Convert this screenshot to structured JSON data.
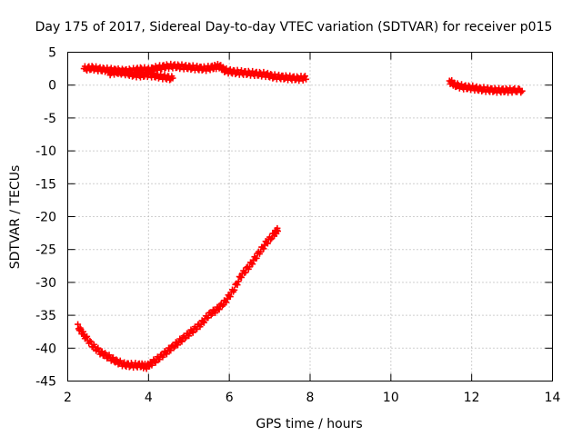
{
  "chart_data": {
    "type": "scatter",
    "title": "Day 175 of 2017, Sidereal Day-to-day VTEC variation (SDTVAR) for receiver p015",
    "xlabel": "GPS time / hours",
    "ylabel": "SDTVAR / TECUs",
    "xlim": [
      2,
      14
    ],
    "ylim": [
      -45,
      5
    ],
    "xticks": [
      2,
      4,
      6,
      8,
      10,
      12,
      14
    ],
    "yticks": [
      5,
      0,
      -5,
      -10,
      -15,
      -20,
      -25,
      -30,
      -35,
      -40,
      -45
    ],
    "grid": true,
    "marker": "plus",
    "color": "#ff0000",
    "series": [
      {
        "values": [
          [
            2.4,
            2.5
          ],
          [
            2.6,
            2.6
          ],
          [
            2.8,
            2.4
          ],
          [
            3.0,
            2.3
          ],
          [
            3.2,
            2.2
          ],
          [
            3.4,
            2.1
          ],
          [
            3.6,
            2.2
          ],
          [
            3.8,
            2.4
          ],
          [
            4.0,
            2.3
          ],
          [
            4.2,
            2.6
          ],
          [
            4.4,
            2.8
          ],
          [
            4.6,
            2.9
          ],
          [
            4.8,
            2.8
          ],
          [
            5.0,
            2.7
          ],
          [
            5.2,
            2.6
          ],
          [
            5.4,
            2.5
          ],
          [
            5.6,
            2.7
          ],
          [
            5.75,
            2.9
          ],
          [
            5.9,
            2.2
          ],
          [
            6.1,
            2.0
          ],
          [
            6.3,
            1.9
          ],
          [
            6.5,
            1.8
          ],
          [
            6.7,
            1.7
          ],
          [
            6.9,
            1.6
          ],
          [
            7.1,
            1.3
          ],
          [
            7.3,
            1.2
          ],
          [
            7.5,
            1.1
          ],
          [
            7.7,
            1.0
          ],
          [
            7.9,
            1.1
          ]
        ]
      },
      {
        "values": [
          [
            3.0,
            1.8
          ],
          [
            3.2,
            2.0
          ],
          [
            3.4,
            1.9
          ],
          [
            3.6,
            1.6
          ],
          [
            3.8,
            1.5
          ],
          [
            4.0,
            1.6
          ],
          [
            4.2,
            1.4
          ],
          [
            4.4,
            1.2
          ],
          [
            4.6,
            1.0
          ]
        ]
      },
      {
        "values": [
          [
            2.25,
            -36.7
          ],
          [
            2.4,
            -38.0
          ],
          [
            2.6,
            -39.5
          ],
          [
            2.8,
            -40.6
          ],
          [
            3.0,
            -41.3
          ],
          [
            3.2,
            -42.0
          ],
          [
            3.4,
            -42.5
          ],
          [
            3.6,
            -42.6
          ],
          [
            3.8,
            -42.6
          ],
          [
            3.95,
            -42.8
          ],
          [
            4.1,
            -42.2
          ],
          [
            4.3,
            -41.3
          ],
          [
            4.5,
            -40.3
          ],
          [
            4.7,
            -39.3
          ],
          [
            4.9,
            -38.3
          ],
          [
            5.1,
            -37.3
          ],
          [
            5.3,
            -36.3
          ],
          [
            5.5,
            -34.9
          ],
          [
            5.7,
            -34.1
          ],
          [
            5.9,
            -32.9
          ],
          [
            6.1,
            -31.2
          ],
          [
            6.3,
            -28.9
          ],
          [
            6.5,
            -27.5
          ],
          [
            6.7,
            -25.8
          ],
          [
            6.9,
            -24.1
          ],
          [
            7.1,
            -22.7
          ],
          [
            7.2,
            -22.0
          ]
        ]
      },
      {
        "values": [
          [
            11.45,
            0.6
          ],
          [
            11.6,
            0.0
          ],
          [
            11.8,
            -0.3
          ],
          [
            12.0,
            -0.4
          ],
          [
            12.2,
            -0.6
          ],
          [
            12.4,
            -0.7
          ],
          [
            12.6,
            -0.8
          ],
          [
            12.8,
            -0.8
          ],
          [
            13.0,
            -0.8
          ],
          [
            13.25,
            -0.8
          ]
        ]
      }
    ]
  }
}
